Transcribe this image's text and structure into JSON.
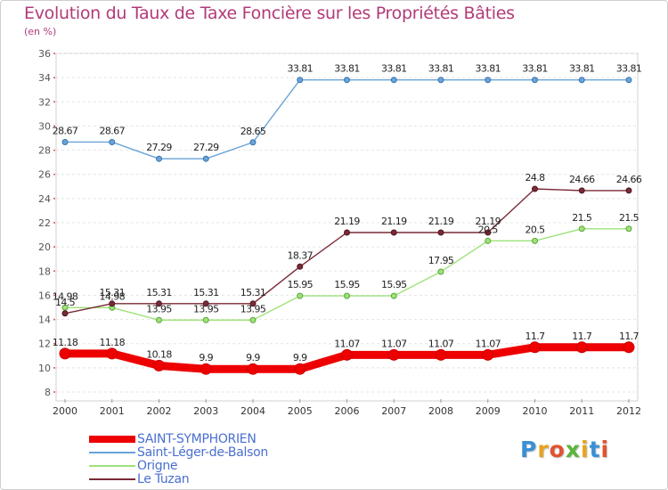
{
  "title": "Evolution du Taux de Taxe Foncière sur les Propriétés Bâties",
  "unit_label": "(en %)",
  "logo_text": "Proxiti",
  "logo_colors": [
    "#3a8fd6",
    "#e8a21e",
    "#e2532f",
    "#5ab53a",
    "#e8a21e",
    "#3a8fd6",
    "#e2532f"
  ],
  "chart_data": {
    "type": "line",
    "title": "Evolution du Taux de Taxe Foncière sur les Propriétés Bâties",
    "ylabel": "(en %)",
    "xlabel": "",
    "x": [
      "2000",
      "2001",
      "2002",
      "2003",
      "2004",
      "2005",
      "2006",
      "2007",
      "2008",
      "2009",
      "2010",
      "2011",
      "2012"
    ],
    "ylim": [
      8,
      36
    ],
    "yticks": [
      "8",
      "10",
      "12",
      "14",
      "16",
      "18",
      "20",
      "22",
      "24",
      "26",
      "28",
      "30",
      "32",
      "34",
      "36"
    ],
    "grid": "horizontal dashed",
    "legend_position": "bottom-left",
    "series": [
      {
        "name": "SAINT-SYMPHORIEN",
        "color": "#ee0000",
        "width": 9,
        "values": [
          11.18,
          11.18,
          10.18,
          9.9,
          9.9,
          9.9,
          11.07,
          11.07,
          11.07,
          11.07,
          11.7,
          11.7,
          11.7
        ],
        "labels": [
          "11.18",
          "11.18",
          "10.18",
          "9.9",
          "9.9",
          "9.9",
          "11.07",
          "11.07",
          "11.07",
          "11.07",
          "11.7",
          "11.7",
          "11.7"
        ]
      },
      {
        "name": "Saint-Léger-de-Balson",
        "color": "#6aa3d8",
        "width": 1.4,
        "values": [
          28.67,
          28.67,
          27.29,
          27.29,
          28.65,
          33.81,
          33.81,
          33.81,
          33.81,
          33.81,
          33.81,
          33.81,
          33.81
        ],
        "labels": [
          "28.67",
          "28.67",
          "27.29",
          "27.29",
          "28.65",
          "33.81",
          "33.81",
          "33.81",
          "33.81",
          "33.81",
          "33.81",
          "33.81",
          "33.81"
        ]
      },
      {
        "name": "Origne",
        "color": "#9ee27a",
        "width": 1.4,
        "values": [
          14.98,
          14.98,
          13.95,
          13.95,
          13.95,
          15.95,
          15.95,
          15.95,
          17.95,
          20.5,
          20.5,
          21.5,
          21.5
        ],
        "labels": [
          "14.98",
          "14.98",
          "13.95",
          "13.95",
          "13.95",
          "15.95",
          "15.95",
          "15.95",
          "17.95",
          "20.5",
          "20.5",
          "21.5",
          "21.5"
        ]
      },
      {
        "name": "Le Tuzan",
        "color": "#7a2a36",
        "width": 1.4,
        "values": [
          14.5,
          15.31,
          15.31,
          15.31,
          15.31,
          18.37,
          21.19,
          21.19,
          21.19,
          21.19,
          24.8,
          24.66,
          24.66
        ],
        "labels": [
          "14.5",
          "15.31",
          "15.31",
          "15.31",
          "15.31",
          "18.37",
          "21.19",
          "21.19",
          "21.19",
          "21.19",
          "24.8",
          "24.66",
          "24.66"
        ]
      }
    ]
  }
}
